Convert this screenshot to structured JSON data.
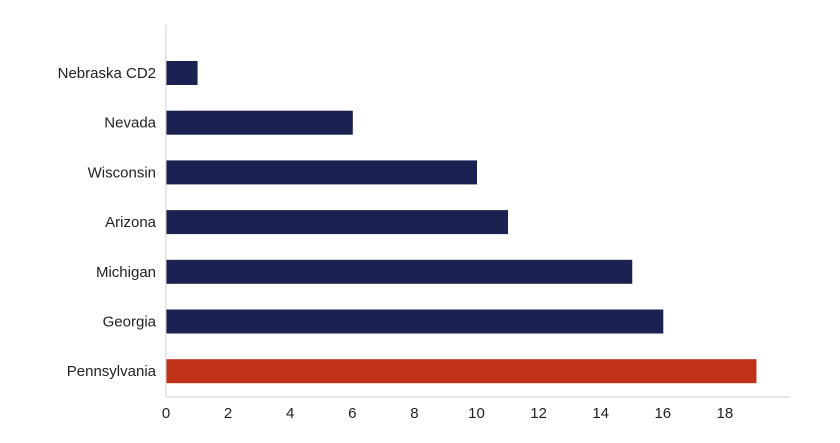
{
  "chart_data": {
    "type": "bar",
    "orientation": "horizontal",
    "categories": [
      "Nebraska CD2",
      "Nevada",
      "Wisconsin",
      "Arizona",
      "Michigan",
      "Georgia",
      "Pennsylvania"
    ],
    "values": [
      1,
      6,
      10,
      11,
      15,
      16,
      19
    ],
    "highlight": "Pennsylvania",
    "colors": {
      "default": "#1b2150",
      "highlight": "#c0311a"
    },
    "xlim": [
      0,
      20
    ],
    "xticks": [
      0,
      2,
      4,
      6,
      8,
      10,
      12,
      14,
      16,
      18
    ],
    "title": "",
    "xlabel": "",
    "ylabel": "",
    "grid": false,
    "legend": "none"
  }
}
